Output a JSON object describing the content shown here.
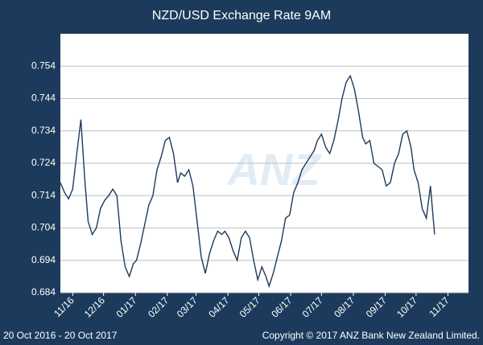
{
  "chart_data": {
    "type": "line",
    "title": "NZD/USD Exchange Rate  9AM",
    "watermark": "ANZ",
    "date_range": "20 Oct 2016 - 20 Oct 2017",
    "copyright": "Copyright © 2017 ANZ Bank New Zealand Limited.",
    "x": [
      0,
      4,
      8,
      12,
      16,
      20,
      24,
      27,
      31,
      35,
      39,
      43,
      47,
      51,
      55,
      59,
      63,
      67,
      71,
      74,
      78,
      82,
      86,
      90,
      94,
      98,
      102,
      106,
      110,
      114,
      117,
      121,
      125,
      129,
      133,
      137,
      141,
      145,
      149,
      153,
      157,
      160,
      164,
      168,
      172,
      176,
      180,
      184,
      188,
      192,
      196,
      200,
      203,
      207,
      211,
      215,
      219,
      223,
      227,
      231,
      235,
      239,
      243,
      247,
      250,
      254,
      258,
      262,
      266,
      270,
      274,
      278,
      282,
      286,
      290,
      294,
      297,
      301,
      305,
      309,
      313,
      317,
      321,
      325,
      329,
      333,
      337,
      341,
      344,
      348,
      352,
      356,
      360,
      364
    ],
    "series": [
      {
        "name": "NZD/USD",
        "color": "#1f3a5a",
        "values": [
          0.718,
          0.715,
          0.713,
          0.716,
          0.727,
          0.7375,
          0.718,
          0.706,
          0.702,
          0.704,
          0.71,
          0.7125,
          0.714,
          0.716,
          0.714,
          0.7,
          0.692,
          0.689,
          0.693,
          0.694,
          0.699,
          0.705,
          0.711,
          0.714,
          0.722,
          0.726,
          0.731,
          0.732,
          0.727,
          0.718,
          0.721,
          0.72,
          0.722,
          0.717,
          0.706,
          0.695,
          0.69,
          0.696,
          0.7,
          0.703,
          0.702,
          0.703,
          0.701,
          0.697,
          0.694,
          0.701,
          0.703,
          0.701,
          0.694,
          0.688,
          0.692,
          0.689,
          0.686,
          0.69,
          0.695,
          0.7,
          0.707,
          0.708,
          0.715,
          0.718,
          0.722,
          0.724,
          0.726,
          0.728,
          0.731,
          0.733,
          0.729,
          0.727,
          0.731,
          0.737,
          0.744,
          0.749,
          0.751,
          0.747,
          0.74,
          0.732,
          0.73,
          0.731,
          0.724,
          0.723,
          0.722,
          0.717,
          0.718,
          0.724,
          0.727,
          0.733,
          0.734,
          0.729,
          0.722,
          0.718,
          0.71,
          0.707,
          0.717,
          0.702
        ]
      }
    ],
    "xlim": [
      0,
      397
    ],
    "xticks": [
      {
        "value": 12,
        "label": "11/16"
      },
      {
        "value": 42,
        "label": "12/16"
      },
      {
        "value": 73,
        "label": "01/17"
      },
      {
        "value": 104,
        "label": "02/17"
      },
      {
        "value": 132,
        "label": "03/17"
      },
      {
        "value": 163,
        "label": "04/17"
      },
      {
        "value": 193,
        "label": "05/17"
      },
      {
        "value": 224,
        "label": "06/17"
      },
      {
        "value": 254,
        "label": "07/17"
      },
      {
        "value": 285,
        "label": "08/17"
      },
      {
        "value": 316,
        "label": "09/17"
      },
      {
        "value": 346,
        "label": "10/17"
      },
      {
        "value": 377,
        "label": "11/17"
      }
    ],
    "ylim": [
      0.684,
      0.764
    ],
    "yticks": [
      0.684,
      0.694,
      0.704,
      0.714,
      0.724,
      0.734,
      0.744,
      0.754
    ],
    "grid": true
  }
}
